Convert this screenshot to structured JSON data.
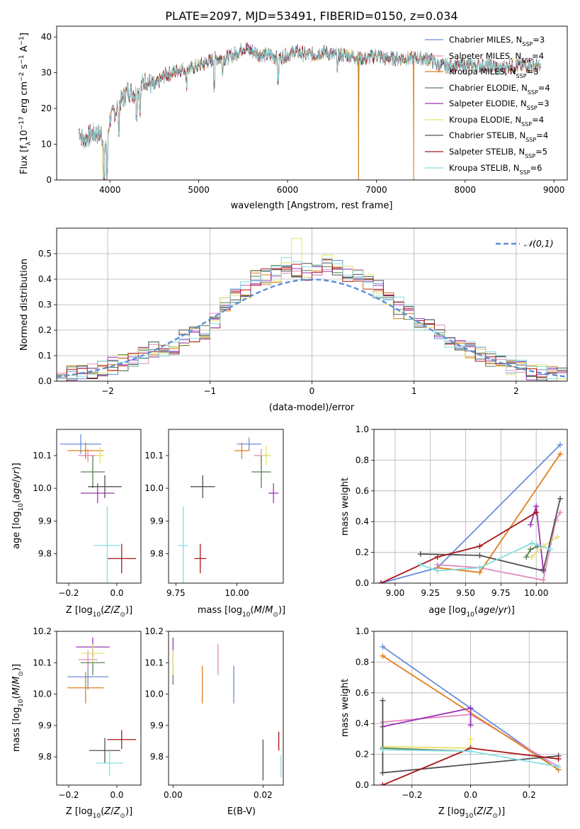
{
  "colors": {
    "axes": "#000000",
    "grid": "#b0b0b0",
    "background": "#ffffff",
    "normal_curve": "#5b8fd9",
    "series": [
      "#6a8ed8",
      "#e28bbf",
      "#e07e1b",
      "#5c7f56",
      "#9a34b5",
      "#e4e36a",
      "#505050",
      "#a8161a",
      "#85dde0"
    ]
  },
  "legend_labels": {
    "chabrier_miles": "Chabrier MILES, N_SSP=3",
    "salpeter_miles": "Salpeter MILES, N_SSP=4",
    "kroupa_miles": "Kroupa MILES, N_SSP=3",
    "chabrier_elodie": "Chabrier ELODIE, N_SSP=4",
    "salpeter_elodie": "Salpeter ELODIE, N_SSP=3",
    "kroupa_elodie": "Kroupa ELODIE, N_SSP=4",
    "chabrier_stelib": "Chabrier STELIB, N_SSP=4",
    "salpeter_stelib": "Salpeter STELIB, N_SSP=5",
    "kroupa_stelib": "Kroupa STELIB, N_SSP=6"
  },
  "chart_data": [
    {
      "id": "spectrum",
      "type": "line",
      "title": "PLATE=2097, MJD=53491, FIBERID=0150, z=0.034",
      "xlabel": "wavelength [Angstrom, rest frame]",
      "ylabel": "Flux [f_λ10^-17 erg cm^-2 s^-1 A^-1]",
      "xlim": [
        3400,
        9150
      ],
      "ylim": [
        0,
        43
      ],
      "xticks": [
        4000,
        5000,
        6000,
        7000,
        8000,
        9000
      ],
      "yticks": [
        0,
        10,
        20,
        30,
        40
      ],
      "grid": false,
      "legend_position": "right",
      "x": [
        3650,
        3700,
        3800,
        3900,
        3950,
        4000,
        4100,
        4200,
        4300,
        4400,
        4500,
        4600,
        4700,
        4800,
        4900,
        5000,
        5100,
        5200,
        5300,
        5400,
        5500,
        5600,
        5700,
        5800,
        5900,
        6000,
        6100,
        6200,
        6300,
        6400,
        6500,
        6600,
        6700,
        6800,
        6900,
        7000,
        7100,
        7200,
        7300,
        7400,
        7500,
        7600,
        7700,
        7800,
        7900,
        8000,
        8100,
        8200,
        8300,
        8400,
        8500,
        8600,
        8700,
        8800,
        8850
      ],
      "y": [
        14,
        11,
        13,
        13,
        8,
        17,
        21,
        25,
        24,
        28,
        26,
        29,
        30,
        31,
        31,
        32,
        33,
        34,
        34,
        35,
        37,
        36,
        35,
        35,
        34,
        35,
        36,
        35,
        35,
        36,
        35,
        35,
        35,
        34,
        34,
        35,
        34,
        34,
        34,
        34,
        34,
        34,
        32,
        32,
        32,
        32,
        32,
        32,
        32,
        31,
        32,
        32,
        32,
        32,
        31
      ],
      "notable_features": [
        {
          "series": "Kroupa MILES, N_SSP=3",
          "x": 6800,
          "y_min": 0
        },
        {
          "series": "Kroupa MILES, N_SSP=3",
          "x": 7420,
          "y_min": 0
        }
      ]
    },
    {
      "id": "residuals",
      "type": "step-histogram",
      "xlabel": "(data-model)/error",
      "ylabel": "Normed distribution",
      "xlim": [
        -2.5,
        2.5
      ],
      "ylim": [
        0,
        0.6
      ],
      "xticks": [
        -2,
        -1,
        0,
        1,
        2
      ],
      "yticks": [
        0.0,
        0.1,
        0.2,
        0.3,
        0.4,
        0.5
      ],
      "grid": true,
      "legend": [
        {
          "name": "𝒩(0,1)",
          "style": "dashed"
        }
      ],
      "legend_position": "top-right",
      "bin_centers": [
        -2.45,
        -2.35,
        -2.25,
        -2.15,
        -2.05,
        -1.95,
        -1.85,
        -1.75,
        -1.65,
        -1.55,
        -1.45,
        -1.35,
        -1.25,
        -1.15,
        -1.05,
        -0.95,
        -0.85,
        -0.75,
        -0.65,
        -0.55,
        -0.45,
        -0.35,
        -0.25,
        -0.15,
        -0.05,
        0.05,
        0.15,
        0.25,
        0.35,
        0.45,
        0.55,
        0.65,
        0.75,
        0.85,
        0.95,
        1.05,
        1.15,
        1.25,
        1.35,
        1.45,
        1.55,
        1.65,
        1.75,
        1.85,
        1.95,
        2.05,
        2.15,
        2.25,
        2.35,
        2.45
      ],
      "base_density": [
        0.02,
        0.03,
        0.03,
        0.04,
        0.05,
        0.06,
        0.07,
        0.09,
        0.1,
        0.12,
        0.13,
        0.14,
        0.17,
        0.18,
        0.2,
        0.24,
        0.3,
        0.33,
        0.36,
        0.4,
        0.41,
        0.42,
        0.45,
        0.44,
        0.43,
        0.45,
        0.46,
        0.44,
        0.42,
        0.41,
        0.39,
        0.36,
        0.32,
        0.28,
        0.26,
        0.23,
        0.21,
        0.19,
        0.16,
        0.14,
        0.12,
        0.1,
        0.09,
        0.07,
        0.06,
        0.05,
        0.04,
        0.03,
        0.03,
        0.02
      ],
      "series": [
        "Chabrier MILES, N_SSP=3",
        "Salpeter MILES, N_SSP=4",
        "Kroupa MILES, N_SSP=3",
        "Chabrier ELODIE, N_SSP=4",
        "Salpeter ELODIE, N_SSP=3",
        "Kroupa ELODIE, N_SSP=4",
        "Chabrier STELIB, N_SSP=4",
        "Salpeter STELIB, N_SSP=5",
        "Kroupa STELIB, N_SSP=6"
      ]
    },
    {
      "id": "z-vs-age",
      "type": "errorbar",
      "xlabel": "Z [log10(Z/Z⊙)]",
      "ylabel": "age [log10(age/yr)]",
      "xlim": [
        -0.25,
        0.1
      ],
      "ylim": [
        9.71,
        10.18
      ],
      "xticks": [
        -0.2,
        0.0
      ],
      "yticks": [
        9.8,
        9.9,
        10.0,
        10.1
      ],
      "points": [
        {
          "x": -0.15,
          "y": 10.135,
          "xerr": 0.085,
          "yerr": 0.03
        },
        {
          "x": -0.12,
          "y": 10.1,
          "xerr": 0.04,
          "yerr": 0.02
        },
        {
          "x": -0.13,
          "y": 10.115,
          "xerr": 0.075,
          "yerr": 0.025
        },
        {
          "x": -0.1,
          "y": 10.05,
          "xerr": 0.05,
          "yerr": 0.05
        },
        {
          "x": -0.08,
          "y": 9.985,
          "xerr": 0.07,
          "yerr": 0.03
        },
        {
          "x": -0.07,
          "y": 10.1,
          "xerr": 0.02,
          "yerr": 0.025
        },
        {
          "x": -0.05,
          "y": 10.005,
          "xerr": 0.07,
          "yerr": 0.035
        },
        {
          "x": 0.02,
          "y": 9.785,
          "xerr": 0.06,
          "yerr": 0.045
        },
        {
          "x": -0.04,
          "y": 9.825,
          "xerr": 0.055,
          "yerr": 0.12
        }
      ]
    },
    {
      "id": "mass-vs-age",
      "type": "errorbar",
      "xlabel": "mass [log10(M/M⊙)]",
      "ylabel": "",
      "xlim": [
        9.72,
        10.19
      ],
      "ylim": [
        9.71,
        10.18
      ],
      "xticks": [
        9.75,
        10.0
      ],
      "yticks": [
        9.8,
        9.9,
        10.0,
        10.1
      ],
      "points": [
        {
          "x": 10.05,
          "y": 10.135,
          "xerr": 0.05,
          "yerr": 0.02
        },
        {
          "x": 10.1,
          "y": 10.1,
          "xerr": 0.03,
          "yerr": 0.02
        },
        {
          "x": 10.02,
          "y": 10.115,
          "xerr": 0.03,
          "yerr": 0.025
        },
        {
          "x": 10.1,
          "y": 10.05,
          "xerr": 0.04,
          "yerr": 0.05
        },
        {
          "x": 10.15,
          "y": 9.985,
          "xerr": 0.02,
          "yerr": 0.03
        },
        {
          "x": 10.12,
          "y": 10.1,
          "xerr": 0.02,
          "yerr": 0.03
        },
        {
          "x": 9.86,
          "y": 10.005,
          "xerr": 0.05,
          "yerr": 0.035
        },
        {
          "x": 9.85,
          "y": 9.785,
          "xerr": 0.025,
          "yerr": 0.045
        },
        {
          "x": 9.78,
          "y": 9.825,
          "xerr": 0.02,
          "yerr": 0.12
        }
      ]
    },
    {
      "id": "age-mass-weight",
      "type": "line",
      "xlabel": "age [log10(age/yr)]",
      "ylabel": "mass weight",
      "xlim": [
        8.85,
        10.22
      ],
      "ylim": [
        0,
        1
      ],
      "xticks": [
        9.0,
        9.25,
        9.5,
        9.75,
        10.0
      ],
      "yticks": [
        0.0,
        0.2,
        0.4,
        0.6,
        0.8,
        1.0
      ],
      "grid": true,
      "series": [
        {
          "x": [
            8.9,
            9.3,
            10.17
          ],
          "y": [
            0.0,
            0.1,
            0.9
          ]
        },
        {
          "x": [
            9.3,
            9.6,
            10.05,
            10.14,
            10.17
          ],
          "y": [
            0.12,
            0.1,
            0.02,
            0.41,
            0.46
          ]
        },
        {
          "x": [
            9.3,
            9.6,
            10.17
          ],
          "y": [
            0.1,
            0.07,
            0.84
          ]
        },
        {
          "x": [
            9.93,
            9.96,
            10.01
          ],
          "y": [
            0.17,
            0.22,
            0.24
          ]
        },
        {
          "x": [
            9.96,
            10.0,
            10.05
          ],
          "y": [
            0.38,
            0.5,
            0.09
          ]
        },
        {
          "x": [
            9.97,
            10.05,
            10.15
          ],
          "y": [
            0.17,
            0.24,
            0.3
          ]
        },
        {
          "x": [
            9.18,
            9.6,
            10.05,
            10.17
          ],
          "y": [
            0.19,
            0.18,
            0.08,
            0.55
          ]
        },
        {
          "x": [
            8.9,
            9.3,
            9.6,
            10.0
          ],
          "y": [
            0.0,
            0.17,
            0.24,
            0.46
          ]
        },
        {
          "x": [
            9.18,
            9.3,
            9.6,
            9.97,
            10.1
          ],
          "y": [
            0.12,
            0.08,
            0.1,
            0.26,
            0.22
          ]
        }
      ]
    },
    {
      "id": "z-vs-mass",
      "type": "errorbar",
      "xlabel": "Z [log10(Z/Z⊙)]",
      "ylabel": "mass [log10(M/M⊙)]",
      "xlim": [
        -0.25,
        0.1
      ],
      "ylim": [
        9.71,
        10.2
      ],
      "xticks": [
        -0.2,
        0.0
      ],
      "yticks": [
        9.8,
        9.9,
        10.0,
        10.1,
        10.2
      ],
      "points": [
        {
          "x": -0.12,
          "y": 10.055,
          "xerr": 0.085,
          "yerr": 0.04
        },
        {
          "x": -0.12,
          "y": 10.11,
          "xerr": 0.04,
          "yerr": 0.03
        },
        {
          "x": -0.13,
          "y": 10.02,
          "xerr": 0.075,
          "yerr": 0.05
        },
        {
          "x": -0.1,
          "y": 10.1,
          "xerr": 0.05,
          "yerr": 0.04
        },
        {
          "x": -0.1,
          "y": 10.15,
          "xerr": 0.07,
          "yerr": 0.03
        },
        {
          "x": -0.1,
          "y": 10.13,
          "xerr": 0.05,
          "yerr": 0.03
        },
        {
          "x": -0.05,
          "y": 9.82,
          "xerr": 0.065,
          "yerr": 0.04
        },
        {
          "x": 0.02,
          "y": 9.855,
          "xerr": 0.06,
          "yerr": 0.03
        },
        {
          "x": -0.03,
          "y": 9.78,
          "xerr": 0.055,
          "yerr": 0.04
        }
      ]
    },
    {
      "id": "ebv-vs-mass",
      "type": "errorbar",
      "xlabel": "E(B-V)",
      "ylabel": "",
      "xlim": [
        -0.001,
        0.0245
      ],
      "ylim": [
        9.71,
        10.2
      ],
      "xticks": [
        0.0,
        0.02
      ],
      "yticks": [
        9.8,
        9.9,
        10.0,
        10.1,
        10.2
      ],
      "points": [
        {
          "x": 0.0135,
          "y": 10.03,
          "xerr": 0.0,
          "yerr": 0.06
        },
        {
          "x": 0.01,
          "y": 10.11,
          "xerr": 0.0,
          "yerr": 0.05
        },
        {
          "x": 0.0065,
          "y": 10.03,
          "xerr": 0.0,
          "yerr": 0.06
        },
        {
          "x": 0.0,
          "y": 10.07,
          "xerr": 0.0,
          "yerr": 0.04
        },
        {
          "x": 0.0,
          "y": 10.14,
          "xerr": 0.0,
          "yerr": 0.04
        },
        {
          "x": 0.0,
          "y": 10.1,
          "xerr": 0.0,
          "yerr": 0.04
        },
        {
          "x": 0.02,
          "y": 9.79,
          "xerr": 0.0,
          "yerr": 0.065
        },
        {
          "x": 0.0235,
          "y": 9.85,
          "xerr": 0.0,
          "yerr": 0.03
        },
        {
          "x": 0.024,
          "y": 9.77,
          "xerr": 0.0,
          "yerr": 0.035
        }
      ]
    },
    {
      "id": "z-mass-weight",
      "type": "line",
      "xlabel": "Z [log10(Z/Z⊙)]",
      "ylabel": "mass weight",
      "xlim": [
        -0.33,
        0.33
      ],
      "ylim": [
        0,
        1
      ],
      "xticks": [
        -0.2,
        0.0,
        0.2
      ],
      "yticks": [
        0.0,
        0.2,
        0.4,
        0.6,
        0.8,
        1.0
      ],
      "grid": true,
      "series": [
        {
          "x": [
            -0.3,
            0.0,
            0.3
          ],
          "y": [
            0.9,
            0.5,
            0.1
          ]
        },
        {
          "x": [
            -0.3,
            0.0,
            0.3
          ],
          "y": [
            0.41,
            0.46,
            0.12
          ]
        },
        {
          "x": [
            -0.3,
            0.3
          ],
          "y": [
            0.84,
            0.1
          ]
        },
        {
          "x": [
            -0.3,
            0.0
          ],
          "y": [
            0.24,
            0.22
          ]
        },
        {
          "x": [
            -0.3,
            0.0,
            0.0
          ],
          "y": [
            0.38,
            0.5,
            0.39
          ]
        },
        {
          "x": [
            -0.3,
            0.0,
            0.0
          ],
          "y": [
            0.25,
            0.24,
            0.3
          ]
        },
        {
          "x": [
            -0.3,
            -0.3,
            0.3
          ],
          "y": [
            0.55,
            0.08,
            0.19
          ]
        },
        {
          "x": [
            -0.3,
            0.0,
            0.3
          ],
          "y": [
            0.0,
            0.24,
            0.17
          ]
        },
        {
          "x": [
            -0.3,
            0.0,
            0.3
          ],
          "y": [
            0.23,
            0.22,
            0.12
          ]
        }
      ]
    }
  ]
}
